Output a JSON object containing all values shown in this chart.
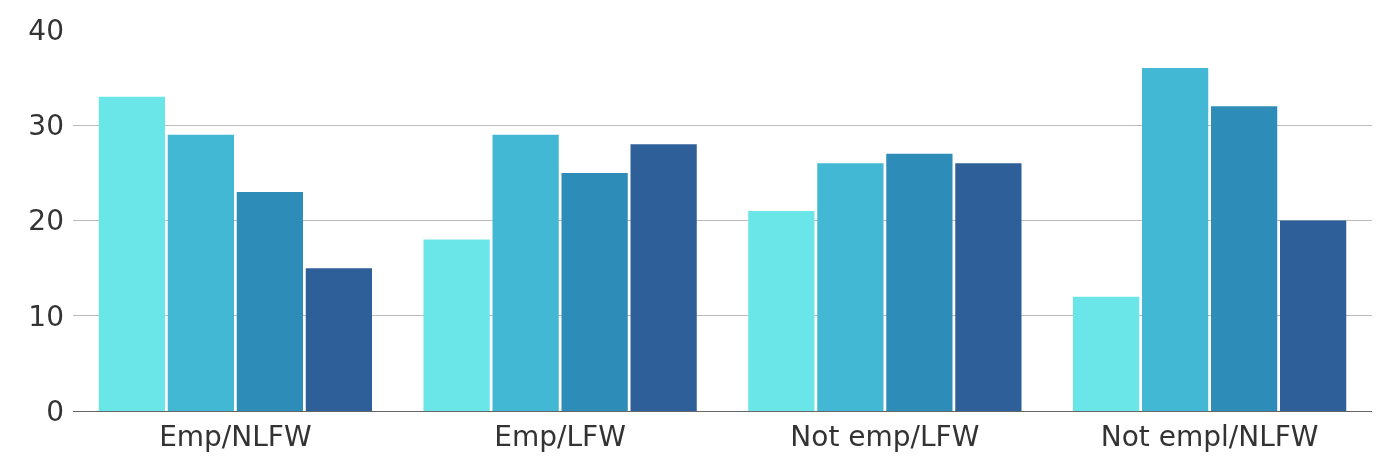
{
  "chart_data": {
    "type": "bar",
    "categories": [
      "Emp/NLFW",
      "Emp/LFW",
      "Not emp/LFW",
      "Not empl/NLFW"
    ],
    "series": [
      {
        "color": "#6ae5e8",
        "values": [
          33,
          18,
          21,
          12
        ]
      },
      {
        "color": "#42b8d5",
        "values": [
          29,
          29,
          26,
          36
        ]
      },
      {
        "color": "#2e8cb9",
        "values": [
          23,
          25,
          27,
          32
        ]
      },
      {
        "color": "#2e5f98",
        "values": [
          15,
          28,
          26,
          20
        ]
      }
    ],
    "ylim": [
      0,
      40
    ],
    "yticks": [
      0,
      10,
      20,
      30,
      40
    ],
    "grid": "y"
  }
}
